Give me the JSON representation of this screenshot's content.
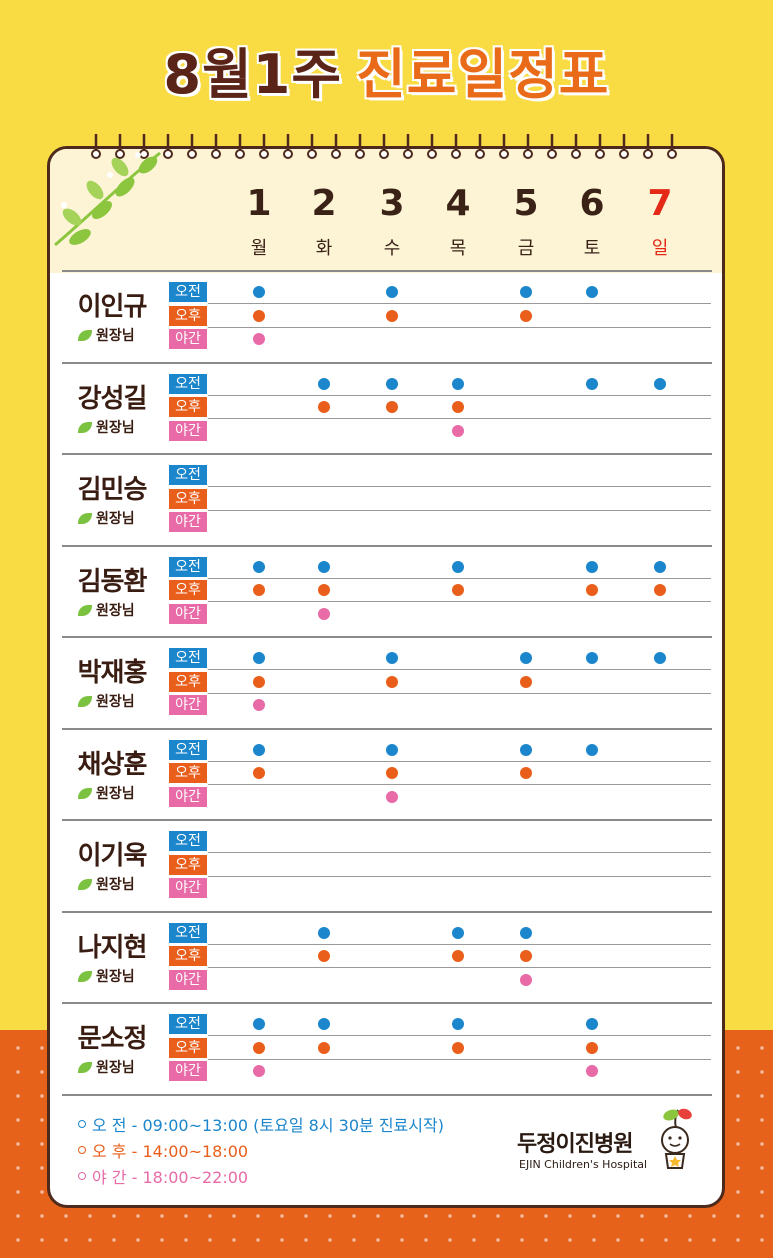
{
  "title": {
    "part1": "8월1주",
    "part2": "진료일정표"
  },
  "days": [
    {
      "num": "1",
      "name": "월",
      "holiday": false
    },
    {
      "num": "2",
      "name": "화",
      "holiday": false
    },
    {
      "num": "3",
      "name": "수",
      "holiday": false
    },
    {
      "num": "4",
      "name": "목",
      "holiday": false
    },
    {
      "num": "5",
      "name": "금",
      "holiday": false
    },
    {
      "num": "6",
      "name": "토",
      "holiday": false
    },
    {
      "num": "7",
      "name": "일",
      "holiday": true
    }
  ],
  "slot_labels": {
    "am": "오전",
    "pm": "오후",
    "night": "야간"
  },
  "doctor_title": "원장님",
  "doctors": [
    {
      "name": "이인규",
      "am": [
        1,
        3,
        5,
        6
      ],
      "pm": [
        1,
        3,
        5
      ],
      "night": [
        1
      ]
    },
    {
      "name": "강성길",
      "am": [
        2,
        3,
        4,
        6,
        7
      ],
      "pm": [
        2,
        3,
        4
      ],
      "night": [
        4
      ]
    },
    {
      "name": "김민승",
      "am": [],
      "pm": [],
      "night": []
    },
    {
      "name": "김동환",
      "am": [
        1,
        2,
        4,
        6,
        7
      ],
      "pm": [
        1,
        2,
        4,
        6,
        7
      ],
      "night": [
        2
      ]
    },
    {
      "name": "박재홍",
      "am": [
        1,
        3,
        5,
        6,
        7
      ],
      "pm": [
        1,
        3,
        5
      ],
      "night": [
        1
      ]
    },
    {
      "name": "채상훈",
      "am": [
        1,
        3,
        5,
        6
      ],
      "pm": [
        1,
        3,
        5
      ],
      "night": [
        3
      ]
    },
    {
      "name": "이기욱",
      "am": [],
      "pm": [],
      "night": []
    },
    {
      "name": "나지현",
      "am": [
        2,
        4,
        5
      ],
      "pm": [
        2,
        4,
        5
      ],
      "night": [
        5
      ]
    },
    {
      "name": "문소정",
      "am": [
        1,
        2,
        4,
        6
      ],
      "pm": [
        1,
        2,
        4,
        6
      ],
      "night": [
        1,
        6
      ]
    }
  ],
  "legend": {
    "am": "오 전 - 09:00~13:00 (토요일 8시 30분 진료시작)",
    "pm": "오 후 - 14:00~18:00",
    "night": "야 간 - 18:00~22:00"
  },
  "hospital": {
    "name": "두정이진병원",
    "name_en": "EJIN Children's Hospital"
  },
  "colors": {
    "am": "#1b86cc",
    "pm": "#e95e1a",
    "night": "#e86aa6",
    "holiday": "#e42a16",
    "background": "#f9dc44"
  }
}
